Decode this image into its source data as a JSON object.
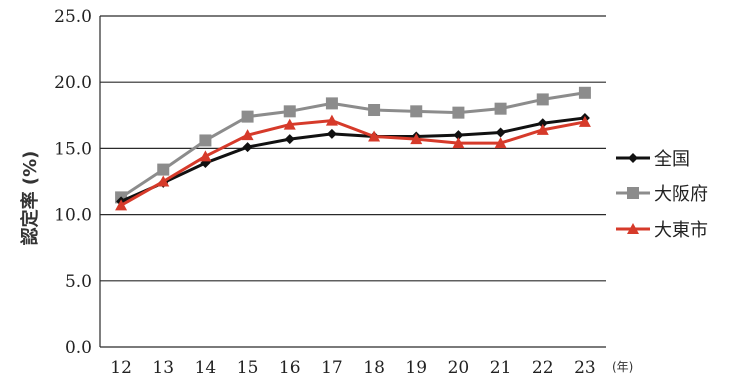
{
  "chart_data": {
    "type": "line",
    "x_unit": "(年)",
    "ylabel": "認定率 (%)",
    "ylim": [
      0,
      25
    ],
    "y_ticks": [
      "0.0",
      "5.0",
      "10.0",
      "15.0",
      "20.0",
      "25.0"
    ],
    "categories": [
      "12",
      "13",
      "14",
      "15",
      "16",
      "17",
      "18",
      "19",
      "20",
      "21",
      "22",
      "23"
    ],
    "grid": "horizontal",
    "legend_position": "right",
    "series": [
      {
        "name": "全国",
        "color": "#111111",
        "marker": "diamond",
        "values": [
          11.0,
          12.4,
          13.9,
          15.1,
          15.7,
          16.1,
          15.9,
          15.9,
          16.0,
          16.2,
          16.9,
          17.3
        ]
      },
      {
        "name": "大阪府",
        "color": "#8c8c8c",
        "marker": "square",
        "values": [
          11.3,
          13.4,
          15.6,
          17.4,
          17.8,
          18.4,
          17.9,
          17.8,
          17.7,
          18.0,
          18.7,
          19.2
        ]
      },
      {
        "name": "大東市",
        "color": "#d63a2a",
        "marker": "triangle",
        "values": [
          10.7,
          12.5,
          14.4,
          16.0,
          16.8,
          17.1,
          15.9,
          15.7,
          15.4,
          15.4,
          16.4,
          17.0
        ]
      }
    ]
  }
}
